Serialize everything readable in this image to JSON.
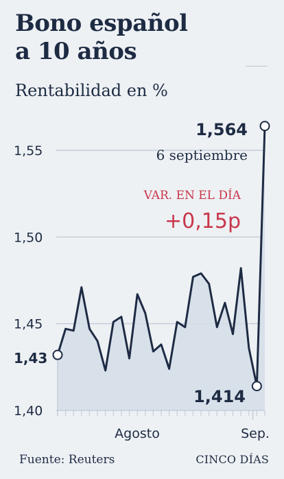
{
  "header": {
    "title_line1": "Bono español",
    "title_line2": "a 10 años",
    "subtitle": "Rentabilidad en %"
  },
  "chart_data": {
    "type": "area",
    "y_ticks": [
      "1,40",
      "1,43",
      "1,45",
      "1,50",
      "1,55"
    ],
    "y_tick_values": [
      1.4,
      1.43,
      1.45,
      1.5,
      1.55
    ],
    "ylim": [
      1.4,
      1.57
    ],
    "x_labels": [
      "Agosto",
      "Sep."
    ],
    "values": [
      1.432,
      1.447,
      1.446,
      1.471,
      1.447,
      1.44,
      1.423,
      1.451,
      1.454,
      1.43,
      1.467,
      1.456,
      1.434,
      1.438,
      1.424,
      1.451,
      1.448,
      1.477,
      1.479,
      1.473,
      1.448,
      1.462,
      1.444,
      1.482,
      1.436,
      1.414,
      1.564
    ],
    "annotations": {
      "last_value": "1,564",
      "last_date": "6 septiembre",
      "change_label": "VAR. EN EL DÍA",
      "change_value": "+0,15p",
      "min_value": "1,414"
    },
    "colors": {
      "line": "#1d2b43",
      "area": "#d3dde7",
      "grid": "#c3ced9",
      "highlight": "#c8364a"
    }
  },
  "footer": {
    "source": "Fuente: Reuters",
    "brand": "CINCO DÍAS"
  }
}
